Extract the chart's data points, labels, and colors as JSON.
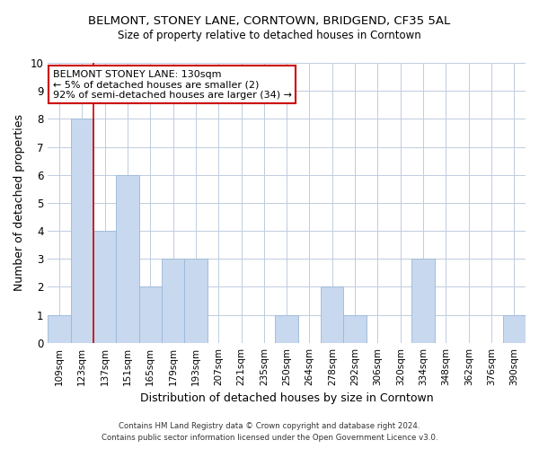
{
  "title": "BELMONT, STONEY LANE, CORNTOWN, BRIDGEND, CF35 5AL",
  "subtitle": "Size of property relative to detached houses in Corntown",
  "xlabel": "Distribution of detached houses by size in Corntown",
  "ylabel": "Number of detached properties",
  "categories": [
    "109sqm",
    "123sqm",
    "137sqm",
    "151sqm",
    "165sqm",
    "179sqm",
    "193sqm",
    "207sqm",
    "221sqm",
    "235sqm",
    "250sqm",
    "264sqm",
    "278sqm",
    "292sqm",
    "306sqm",
    "320sqm",
    "334sqm",
    "348sqm",
    "362sqm",
    "376sqm",
    "390sqm"
  ],
  "values": [
    1,
    8,
    4,
    6,
    2,
    3,
    3,
    0,
    0,
    0,
    1,
    0,
    2,
    1,
    0,
    0,
    3,
    0,
    0,
    0,
    1
  ],
  "bar_color": "#c8d8ee",
  "bar_edge_color": "#9ab8d8",
  "ylim": [
    0,
    10
  ],
  "yticks": [
    0,
    1,
    2,
    3,
    4,
    5,
    6,
    7,
    8,
    9,
    10
  ],
  "annotation_title": "BELMONT STONEY LANE: 130sqm",
  "annotation_line1": "← 5% of detached houses are smaller (2)",
  "annotation_line2": "92% of semi-detached houses are larger (34) →",
  "annotation_box_color": "#ffffff",
  "annotation_box_edge": "#cc0000",
  "footer_line1": "Contains HM Land Registry data © Crown copyright and database right 2024.",
  "footer_line2": "Contains public sector information licensed under the Open Government Licence v3.0.",
  "background_color": "#ffffff",
  "grid_color": "#c0cce0"
}
